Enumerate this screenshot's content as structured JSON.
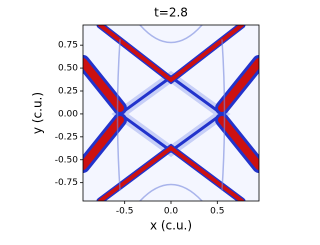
{
  "chart_data": {
    "type": "heatmap",
    "title": "t=2.8",
    "x_label": "x (c.u.)",
    "y_label": "y (c.u.)",
    "xlim": [
      -0.95,
      0.95
    ],
    "ylim": [
      -0.95,
      0.97
    ],
    "xticks": [
      -0.5,
      {
        "value": 0,
        "label": "0.0"
      },
      0.5
    ],
    "yticks": [
      {
        "value": 0.75,
        "label": "0.75"
      },
      {
        "value": 0.5,
        "label": "0.50"
      },
      {
        "value": 0.25,
        "label": "0.25"
      },
      {
        "value": 0,
        "label": "0.00"
      },
      {
        "value": -0.25,
        "label": "-0.25"
      },
      {
        "value": -0.5,
        "label": "-0.50"
      },
      {
        "value": -0.75,
        "label": "-0.75"
      }
    ]
  }
}
